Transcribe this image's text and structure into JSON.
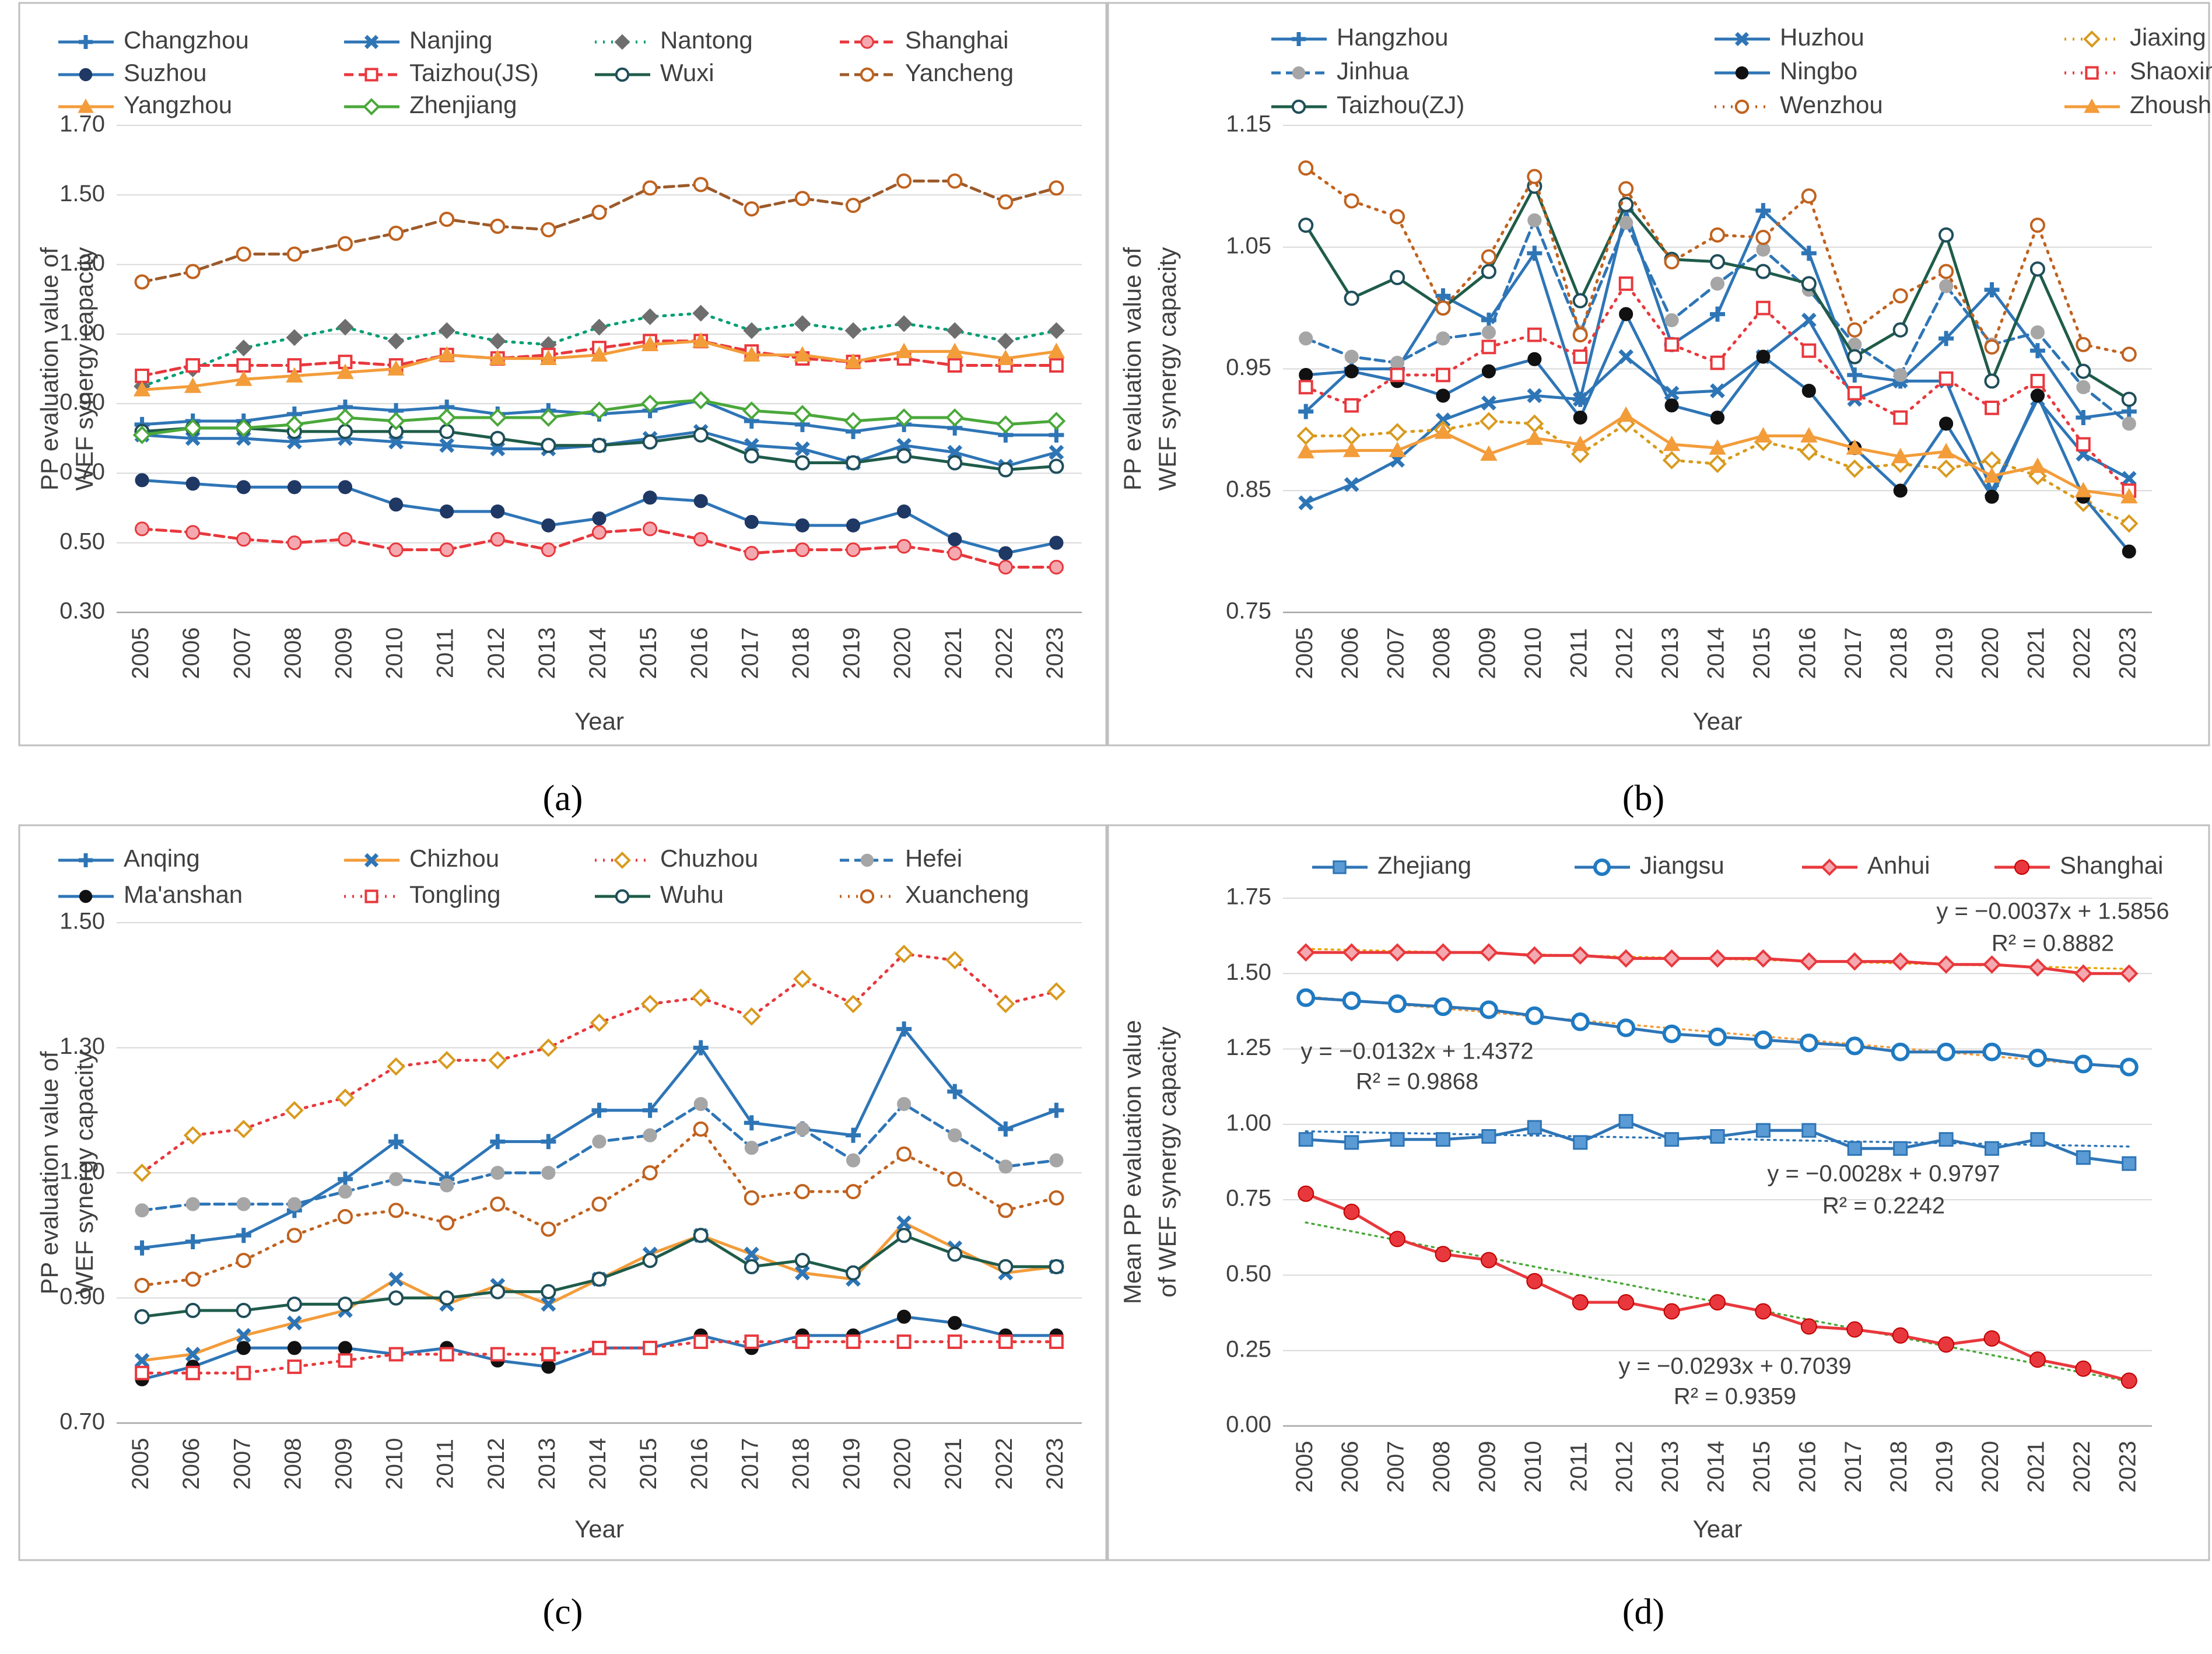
{
  "years": [
    "2005",
    "2006",
    "2007",
    "2008",
    "2009",
    "2010",
    "2011",
    "2012",
    "2013",
    "2014",
    "2015",
    "2016",
    "2017",
    "2018",
    "2019",
    "2020",
    "2021",
    "2022",
    "2023"
  ],
  "captions": {
    "a": "(a)",
    "b": "(b)",
    "c": "(c)",
    "d": "(d)"
  },
  "colors": {
    "frame": "#bfbfbf",
    "axis": "#595959",
    "grid": "#d9d9d9"
  },
  "chart_data": [
    {
      "id": "a",
      "type": "line",
      "xlabel": "Year",
      "ylabel": [
        "PP evaluation value of",
        "WEF synergy capacity"
      ],
      "ylim": [
        0.3,
        1.7
      ],
      "yticks": [
        "0.30",
        "0.50",
        "0.70",
        "0.90",
        "1.10",
        "1.30",
        "1.50",
        "1.70"
      ],
      "legend_cols": 4,
      "series": [
        {
          "name": "Changzhou",
          "color": "#2e75b6",
          "dash": "solid",
          "marker": "plus",
          "values": [
            0.84,
            0.85,
            0.85,
            0.87,
            0.89,
            0.88,
            0.89,
            0.87,
            0.88,
            0.87,
            0.88,
            0.91,
            0.85,
            0.84,
            0.82,
            0.84,
            0.83,
            0.81,
            0.81
          ]
        },
        {
          "name": "Nanjing",
          "color": "#2e75b6",
          "dash": "solid",
          "marker": "x",
          "values": [
            0.81,
            0.8,
            0.8,
            0.79,
            0.8,
            0.79,
            0.78,
            0.77,
            0.77,
            0.78,
            0.8,
            0.82,
            0.78,
            0.77,
            0.73,
            0.78,
            0.76,
            0.72,
            0.76
          ]
        },
        {
          "name": "Nantong",
          "color": "#009e73",
          "dash": "dot",
          "marker": "diamond-gray",
          "values": [
            0.95,
            1.0,
            1.06,
            1.09,
            1.12,
            1.08,
            1.11,
            1.08,
            1.07,
            1.12,
            1.15,
            1.16,
            1.11,
            1.13,
            1.11,
            1.13,
            1.11,
            1.08,
            1.11
          ]
        },
        {
          "name": "Shanghai",
          "color": "#e8383d",
          "dash": "dash",
          "marker": "circle-pink",
          "values": [
            0.54,
            0.53,
            0.51,
            0.5,
            0.51,
            0.48,
            0.48,
            0.51,
            0.48,
            0.53,
            0.54,
            0.51,
            0.47,
            0.48,
            0.48,
            0.49,
            0.47,
            0.43,
            0.43
          ]
        },
        {
          "name": "Suzhou",
          "color": "#2e75b6",
          "dash": "solid",
          "marker": "circle-navy",
          "values": [
            0.68,
            0.67,
            0.66,
            0.66,
            0.66,
            0.61,
            0.59,
            0.59,
            0.55,
            0.57,
            0.63,
            0.62,
            0.56,
            0.55,
            0.55,
            0.59,
            0.51,
            0.47,
            0.5
          ]
        },
        {
          "name": "Taizhou(JS)",
          "color": "#e8383d",
          "dash": "dash",
          "marker": "square-open-red",
          "values": [
            0.98,
            1.01,
            1.01,
            1.01,
            1.02,
            1.01,
            1.04,
            1.03,
            1.04,
            1.06,
            1.08,
            1.08,
            1.05,
            1.03,
            1.02,
            1.03,
            1.01,
            1.01,
            1.01
          ]
        },
        {
          "name": "Wuxi",
          "color": "#1f5c4a",
          "dash": "solid",
          "marker": "circle-open-dark",
          "values": [
            0.82,
            0.83,
            0.83,
            0.82,
            0.82,
            0.82,
            0.82,
            0.8,
            0.78,
            0.78,
            0.79,
            0.81,
            0.75,
            0.73,
            0.73,
            0.75,
            0.73,
            0.71,
            0.72
          ]
        },
        {
          "name": "Yancheng",
          "color": "#9c5a2a",
          "dash": "dash",
          "marker": "circle-open-brown",
          "values": [
            1.25,
            1.28,
            1.33,
            1.33,
            1.36,
            1.39,
            1.43,
            1.41,
            1.4,
            1.45,
            1.52,
            1.53,
            1.46,
            1.49,
            1.47,
            1.54,
            1.54,
            1.48,
            1.52
          ]
        },
        {
          "name": "Yangzhou",
          "color": "#f39c3a",
          "dash": "solid",
          "marker": "triangle-orange",
          "values": [
            0.94,
            0.95,
            0.97,
            0.98,
            0.99,
            1.0,
            1.04,
            1.03,
            1.03,
            1.04,
            1.07,
            1.08,
            1.04,
            1.04,
            1.02,
            1.05,
            1.05,
            1.03,
            1.05
          ]
        },
        {
          "name": "Zhenjiang",
          "color": "#4aa83a",
          "dash": "solid",
          "marker": "diamond-open-green",
          "values": [
            0.81,
            0.83,
            0.83,
            0.84,
            0.86,
            0.85,
            0.86,
            0.86,
            0.86,
            0.88,
            0.9,
            0.91,
            0.88,
            0.87,
            0.85,
            0.86,
            0.86,
            0.84,
            0.85
          ]
        }
      ]
    },
    {
      "id": "b",
      "type": "line",
      "xlabel": "Year",
      "ylabel": [
        "PP evaluation value of",
        "WEF synergy capacity"
      ],
      "ylim": [
        0.75,
        1.15
      ],
      "yticks": [
        "0.75",
        "0.85",
        "0.95",
        "1.05",
        "1.15"
      ],
      "legend_cols": 3,
      "series": [
        {
          "name": "Hangzhou",
          "color": "#2e75b6",
          "dash": "solid",
          "marker": "plus",
          "values": [
            0.915,
            0.95,
            0.95,
            1.01,
            0.99,
            1.045,
            0.925,
            1.08,
            0.97,
            0.995,
            1.08,
            1.045,
            0.945,
            0.94,
            0.975,
            1.015,
            0.965,
            0.91,
            0.915
          ]
        },
        {
          "name": "Huzhou",
          "color": "#2e75b6",
          "dash": "solid",
          "marker": "x",
          "values": [
            0.84,
            0.855,
            0.875,
            0.908,
            0.922,
            0.928,
            0.925,
            0.96,
            0.93,
            0.932,
            0.96,
            0.99,
            0.925,
            0.94,
            0.94,
            0.85,
            0.925,
            0.88,
            0.86
          ]
        },
        {
          "name": "Jiaxing",
          "color": "#d89a1e",
          "dash": "dot",
          "marker": "diamond-open-orange",
          "values": [
            0.895,
            0.895,
            0.898,
            0.9,
            0.907,
            0.905,
            0.88,
            0.905,
            0.875,
            0.872,
            0.89,
            0.882,
            0.868,
            0.872,
            0.868,
            0.875,
            0.862,
            0.84,
            0.823
          ]
        },
        {
          "name": "Jinhua",
          "color": "#2e75b6",
          "dash": "dash",
          "marker": "circle-gray",
          "values": [
            0.975,
            0.96,
            0.955,
            0.975,
            0.98,
            1.072,
            0.98,
            1.07,
            0.99,
            1.02,
            1.048,
            1.015,
            0.97,
            0.945,
            1.018,
            0.97,
            0.98,
            0.935,
            0.905
          ]
        },
        {
          "name": "Ningbo",
          "color": "#2e75b6",
          "dash": "solid",
          "marker": "circle-black",
          "values": [
            0.945,
            0.948,
            0.94,
            0.928,
            0.948,
            0.958,
            0.91,
            0.995,
            0.92,
            0.91,
            0.96,
            0.932,
            0.885,
            0.85,
            0.905,
            0.845,
            0.928,
            0.845,
            0.8
          ]
        },
        {
          "name": "Shaoxing",
          "color": "#e8383d",
          "dash": "dot",
          "marker": "square-open-red",
          "values": [
            0.935,
            0.92,
            0.945,
            0.945,
            0.968,
            0.978,
            0.96,
            1.02,
            0.97,
            0.955,
            1.0,
            0.965,
            0.93,
            0.91,
            0.942,
            0.918,
            0.94,
            0.888,
            0.85
          ]
        },
        {
          "name": "Taizhou(ZJ)",
          "color": "#1f5c4a",
          "dash": "solid",
          "marker": "circle-open-dark",
          "values": [
            1.068,
            1.008,
            1.025,
            1.0,
            1.03,
            1.1,
            1.006,
            1.085,
            1.04,
            1.038,
            1.03,
            1.02,
            0.96,
            0.982,
            1.06,
            0.94,
            1.032,
            0.948,
            0.925
          ]
        },
        {
          "name": "Wenzhou",
          "color": "#c0621f",
          "dash": "dot",
          "marker": "circle-open-brown",
          "values": [
            1.115,
            1.088,
            1.075,
            1.0,
            1.042,
            1.108,
            0.978,
            1.098,
            1.038,
            1.06,
            1.058,
            1.092,
            0.982,
            1.01,
            1.03,
            0.968,
            1.068,
            0.97,
            0.962
          ]
        },
        {
          "name": "Zhoushan",
          "color": "#f39c3a",
          "dash": "solid",
          "marker": "triangle-orange",
          "values": [
            0.882,
            0.883,
            0.883,
            0.898,
            0.88,
            0.893,
            0.888,
            0.912,
            0.888,
            0.885,
            0.895,
            0.895,
            0.885,
            0.878,
            0.882,
            0.862,
            0.87,
            0.85,
            0.845
          ]
        }
      ]
    },
    {
      "id": "c",
      "type": "line",
      "xlabel": "Year",
      "ylabel": [
        "PP evaluation value of",
        "WEF synergy capacity"
      ],
      "ylim": [
        0.7,
        1.5
      ],
      "yticks": [
        "0.70",
        "0.90",
        "1.10",
        "1.30",
        "1.50"
      ],
      "legend_cols": 4,
      "series": [
        {
          "name": "Anqing",
          "color": "#2e75b6",
          "dash": "solid",
          "marker": "plus",
          "values": [
            0.98,
            0.99,
            1.0,
            1.04,
            1.09,
            1.15,
            1.09,
            1.15,
            1.15,
            1.2,
            1.2,
            1.3,
            1.18,
            1.17,
            1.16,
            1.33,
            1.23,
            1.17,
            1.2
          ]
        },
        {
          "name": "Chizhou",
          "color": "#f39c3a",
          "dash": "solid",
          "marker": "x-blue",
          "values": [
            0.8,
            0.81,
            0.84,
            0.86,
            0.88,
            0.93,
            0.89,
            0.92,
            0.89,
            0.93,
            0.97,
            1.0,
            0.97,
            0.94,
            0.93,
            1.02,
            0.98,
            0.94,
            0.95
          ]
        },
        {
          "name": "Chuzhou",
          "color": "#e8383d",
          "dash": "dot",
          "marker": "diamond-open-orange",
          "values": [
            1.1,
            1.16,
            1.17,
            1.2,
            1.22,
            1.27,
            1.28,
            1.28,
            1.3,
            1.34,
            1.37,
            1.38,
            1.35,
            1.41,
            1.37,
            1.45,
            1.44,
            1.37,
            1.39
          ]
        },
        {
          "name": "Hefei",
          "color": "#2e75b6",
          "dash": "dash",
          "marker": "circle-gray",
          "values": [
            1.04,
            1.05,
            1.05,
            1.05,
            1.07,
            1.09,
            1.08,
            1.1,
            1.1,
            1.15,
            1.16,
            1.21,
            1.14,
            1.17,
            1.12,
            1.21,
            1.16,
            1.11,
            1.12
          ]
        },
        {
          "name": "Ma'anshan",
          "color": "#2e75b6",
          "dash": "solid",
          "marker": "circle-black",
          "values": [
            0.77,
            0.79,
            0.82,
            0.82,
            0.82,
            0.81,
            0.82,
            0.8,
            0.79,
            0.82,
            0.82,
            0.84,
            0.82,
            0.84,
            0.84,
            0.87,
            0.86,
            0.84,
            0.84
          ]
        },
        {
          "name": "Tongling",
          "color": "#e8383d",
          "dash": "dot",
          "marker": "square-open-red",
          "values": [
            0.78,
            0.78,
            0.78,
            0.79,
            0.8,
            0.81,
            0.81,
            0.81,
            0.81,
            0.82,
            0.82,
            0.83,
            0.83,
            0.83,
            0.83,
            0.83,
            0.83,
            0.83,
            0.83
          ]
        },
        {
          "name": "Wuhu",
          "color": "#1f5c4a",
          "dash": "solid",
          "marker": "circle-open-dark",
          "values": [
            0.87,
            0.88,
            0.88,
            0.89,
            0.89,
            0.9,
            0.9,
            0.91,
            0.91,
            0.93,
            0.96,
            1.0,
            0.95,
            0.96,
            0.94,
            1.0,
            0.97,
            0.95,
            0.95
          ]
        },
        {
          "name": "Xuancheng",
          "color": "#c0621f",
          "dash": "dot",
          "marker": "circle-open-brown",
          "values": [
            0.92,
            0.93,
            0.96,
            1.0,
            1.03,
            1.04,
            1.02,
            1.05,
            1.01,
            1.05,
            1.1,
            1.17,
            1.06,
            1.07,
            1.07,
            1.13,
            1.09,
            1.04,
            1.06
          ]
        }
      ]
    },
    {
      "id": "d",
      "type": "line",
      "xlabel": "Year",
      "ylabel": [
        "Mean PP evaluation value",
        "of WEF synergy capacity"
      ],
      "ylim": [
        0.0,
        1.75
      ],
      "yticks": [
        "0.00",
        "0.25",
        "0.50",
        "0.75",
        "1.00",
        "1.25",
        "1.50",
        "1.75"
      ],
      "legend_cols": 4,
      "series": [
        {
          "name": "Zhejiang",
          "color": "#2e75b6",
          "dash": "solid",
          "marker": "square-blue",
          "values": [
            0.95,
            0.94,
            0.95,
            0.95,
            0.96,
            0.99,
            0.94,
            1.01,
            0.95,
            0.96,
            0.98,
            0.98,
            0.92,
            0.92,
            0.95,
            0.92,
            0.95,
            0.89,
            0.87
          ],
          "trend": {
            "equation": "y = −0.0028x + 0.9797",
            "r2": "R² = 0.2242",
            "slope": -0.0028,
            "intercept": 0.9797,
            "color": "#2e75b6"
          }
        },
        {
          "name": "Jiangsu",
          "color": "#2e75b6",
          "dash": "solid",
          "marker": "circle-open-blue",
          "values": [
            1.42,
            1.41,
            1.4,
            1.39,
            1.38,
            1.36,
            1.34,
            1.32,
            1.3,
            1.29,
            1.28,
            1.27,
            1.26,
            1.24,
            1.24,
            1.24,
            1.22,
            1.2,
            1.19
          ],
          "trend": {
            "equation": "y = −0.0132x + 1.4372",
            "r2": "R² = 0.9868",
            "slope": -0.0132,
            "intercept": 1.4372,
            "color": "#f39c3a"
          }
        },
        {
          "name": "Anhui",
          "color": "#e8383d",
          "dash": "solid",
          "marker": "diamond-red",
          "values": [
            1.57,
            1.57,
            1.57,
            1.57,
            1.57,
            1.56,
            1.56,
            1.55,
            1.55,
            1.55,
            1.55,
            1.54,
            1.54,
            1.54,
            1.53,
            1.53,
            1.52,
            1.5,
            1.5
          ],
          "trend": {
            "equation": "y = −0.0037x + 1.5856",
            "r2": "R² = 0.8882",
            "slope": -0.0037,
            "intercept": 1.5856,
            "color": "#e6a800"
          }
        },
        {
          "name": "Shanghai",
          "color": "#e8383d",
          "dash": "solid",
          "marker": "circle-red",
          "values": [
            0.77,
            0.71,
            0.62,
            0.57,
            0.55,
            0.48,
            0.41,
            0.41,
            0.38,
            0.41,
            0.38,
            0.33,
            0.32,
            0.3,
            0.27,
            0.29,
            0.22,
            0.19,
            0.15
          ],
          "trend": {
            "equation": "y = −0.0293x + 0.7039",
            "r2": "R² = 0.9359",
            "slope": -0.0293,
            "intercept": 0.7039,
            "color": "#4aa83a"
          }
        }
      ]
    }
  ]
}
